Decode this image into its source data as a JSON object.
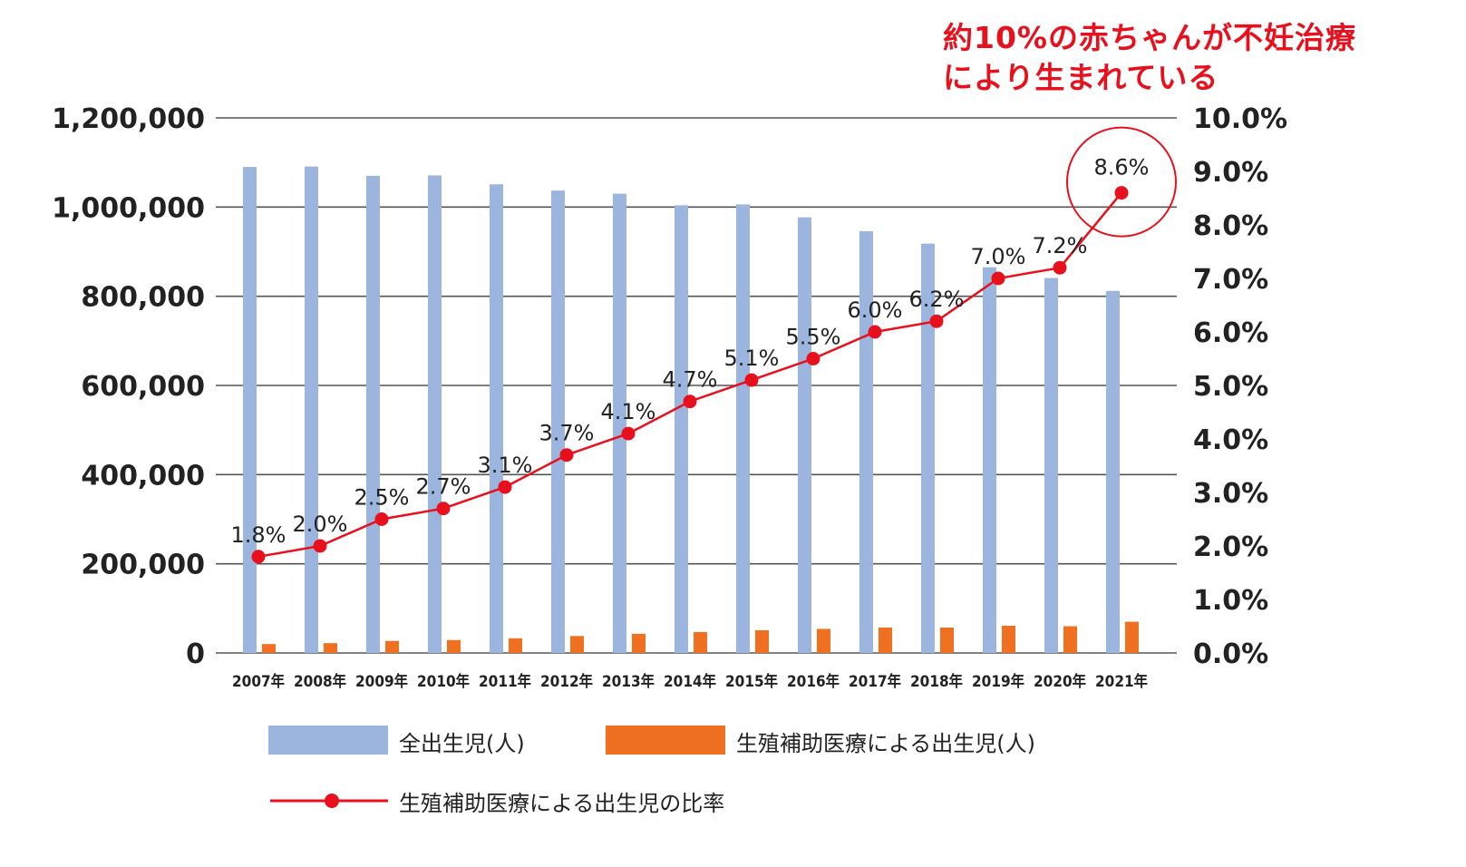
{
  "annotation": {
    "line1": "約10%の赤ちゃんが不妊治療",
    "line2": "により生まれている"
  },
  "colors": {
    "all_births": "#9bb5de",
    "art_births": "#f07022",
    "ratio_line": "#e8101c",
    "grid": "#555555",
    "annotation": "#e8101c"
  },
  "chart_data": {
    "type": "bar",
    "title": "",
    "xlabel": "",
    "ylabel": "",
    "categories": [
      "2007年",
      "2008年",
      "2009年",
      "2010年",
      "2011年",
      "2012年",
      "2013年",
      "2014年",
      "2015年",
      "2016年",
      "2017年",
      "2018年",
      "2019年",
      "2020年",
      "2021年"
    ],
    "ylim": [
      0,
      1200000
    ],
    "y_ticks": [
      "0",
      "200,000",
      "400,000",
      "600,000",
      "800,000",
      "1,000,000",
      "1,200,000"
    ],
    "y2lim": [
      0,
      10
    ],
    "y2_ticks": [
      "0.0%",
      "1.0%",
      "2.0%",
      "3.0%",
      "4.0%",
      "5.0%",
      "6.0%",
      "7.0%",
      "8.0%",
      "9.0%",
      "10.0%"
    ],
    "grid": true,
    "legend_position": "bottom",
    "series": [
      {
        "name": "全出生児(人)",
        "kind": "bar",
        "axis": "left",
        "values": [
          1090000,
          1091000,
          1070000,
          1071000,
          1051000,
          1037000,
          1030000,
          1004000,
          1006000,
          977000,
          946000,
          918000,
          865000,
          841000,
          812000
        ]
      },
      {
        "name": "生殖補助医療による出生児(人)",
        "kind": "bar",
        "axis": "left",
        "values": [
          20000,
          22000,
          27000,
          29000,
          33000,
          38000,
          43000,
          47000,
          51000,
          54000,
          57000,
          57000,
          61000,
          60000,
          70000
        ]
      },
      {
        "name": "生殖補助医療による出生児の比率",
        "kind": "line",
        "axis": "right",
        "values": [
          1.8,
          2.0,
          2.5,
          2.7,
          3.1,
          3.7,
          4.1,
          4.7,
          5.1,
          5.5,
          6.0,
          6.2,
          7.0,
          7.2,
          8.6
        ],
        "labels": [
          "1.8%",
          "2.0%",
          "2.5%",
          "2.7%",
          "3.1%",
          "3.7%",
          "4.1%",
          "4.7%",
          "5.1%",
          "5.5%",
          "6.0%",
          "6.2%",
          "7.0%",
          "7.2%",
          "8.6%"
        ]
      }
    ],
    "highlight": {
      "category": "2021年",
      "label": "8.6%"
    }
  }
}
